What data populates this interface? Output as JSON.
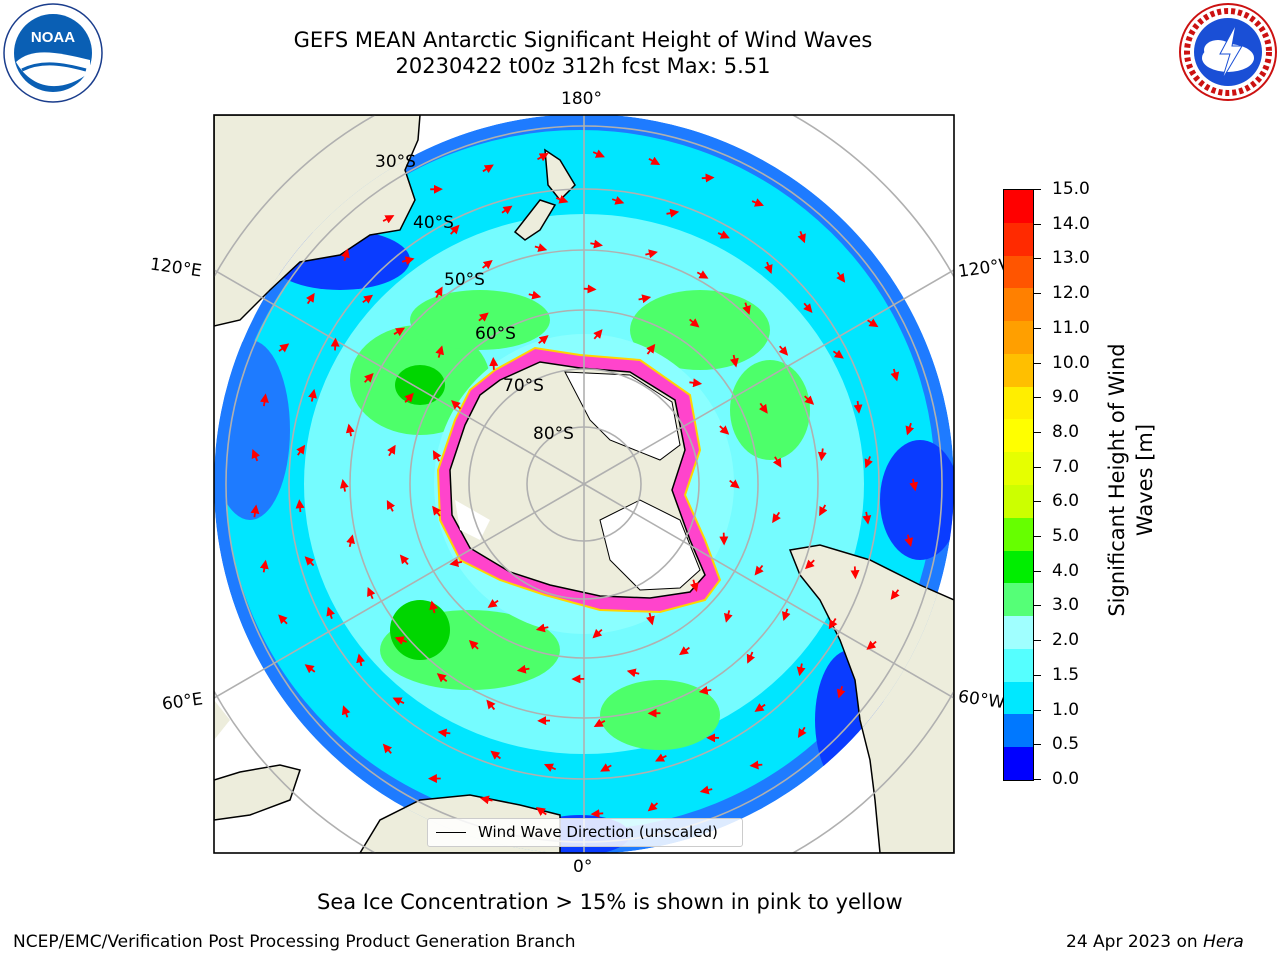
{
  "header": {
    "title_line1": "GEFS MEAN Antarctic Significant Height of Wind Waves",
    "title_line2": "20230422 t00z 312h fcst   Max: 5.51"
  },
  "logos": {
    "left": {
      "text": "NOAA",
      "ring_text": "NATIONAL OCEANIC AND ATMOSPHERIC ADMINISTRATION · U.S. DEPARTMENT OF COMMERCE"
    },
    "right": {
      "ring_text": "NATIONAL WEATHER SERVICE"
    }
  },
  "map": {
    "longitude_labels": {
      "top": "180°",
      "bottom": "0°",
      "upper_left": "120°E",
      "upper_right": "120°W",
      "lower_left": "60°E",
      "lower_right": "60°W"
    },
    "latitude_labels": [
      "30°S",
      "40°S",
      "50°S",
      "60°S",
      "70°S",
      "80°S"
    ],
    "legend_label": "Wind Wave Direction (unscaled)",
    "colors": {
      "ocean_low": "#0a3cff",
      "ocean_mid": "#1e7bff",
      "cyan": "#00e6ff",
      "light_cyan": "#8affff",
      "green": "#4dff6a",
      "land": "#ededdc",
      "arrow": "#ff0000",
      "sea_ice": "#ff44cc"
    }
  },
  "colorbar": {
    "label": "Significant Height of Wind Waves [m]",
    "label_line1": "Significant Height of Wind",
    "label_line2": "Waves [m]",
    "ticks": [
      "15.0",
      "14.0",
      "13.0",
      "12.0",
      "11.0",
      "10.0",
      "9.0",
      "8.0",
      "7.0",
      "6.0",
      "5.0",
      "4.0",
      "3.0",
      "2.0",
      "1.5",
      "1.0",
      "0.5",
      "0.0"
    ],
    "colors_top_to_bottom": [
      "#ff0000",
      "#ff2a00",
      "#ff5500",
      "#ff8000",
      "#ff9f00",
      "#ffbf00",
      "#ffee00",
      "#ffff00",
      "#e6ff00",
      "#ccff00",
      "#66ff00",
      "#00ee00",
      "#55ff77",
      "#a0ffff",
      "#55ffff",
      "#00e8ff",
      "#0078ff",
      "#0000ff"
    ]
  },
  "footer": {
    "caption": "Sea Ice Concentration > 15% is shown in pink to yellow",
    "branch": "NCEP/EMC/Verification Post Processing Product Generation Branch",
    "date": "24 Apr 2023 on",
    "host": "Hera"
  }
}
